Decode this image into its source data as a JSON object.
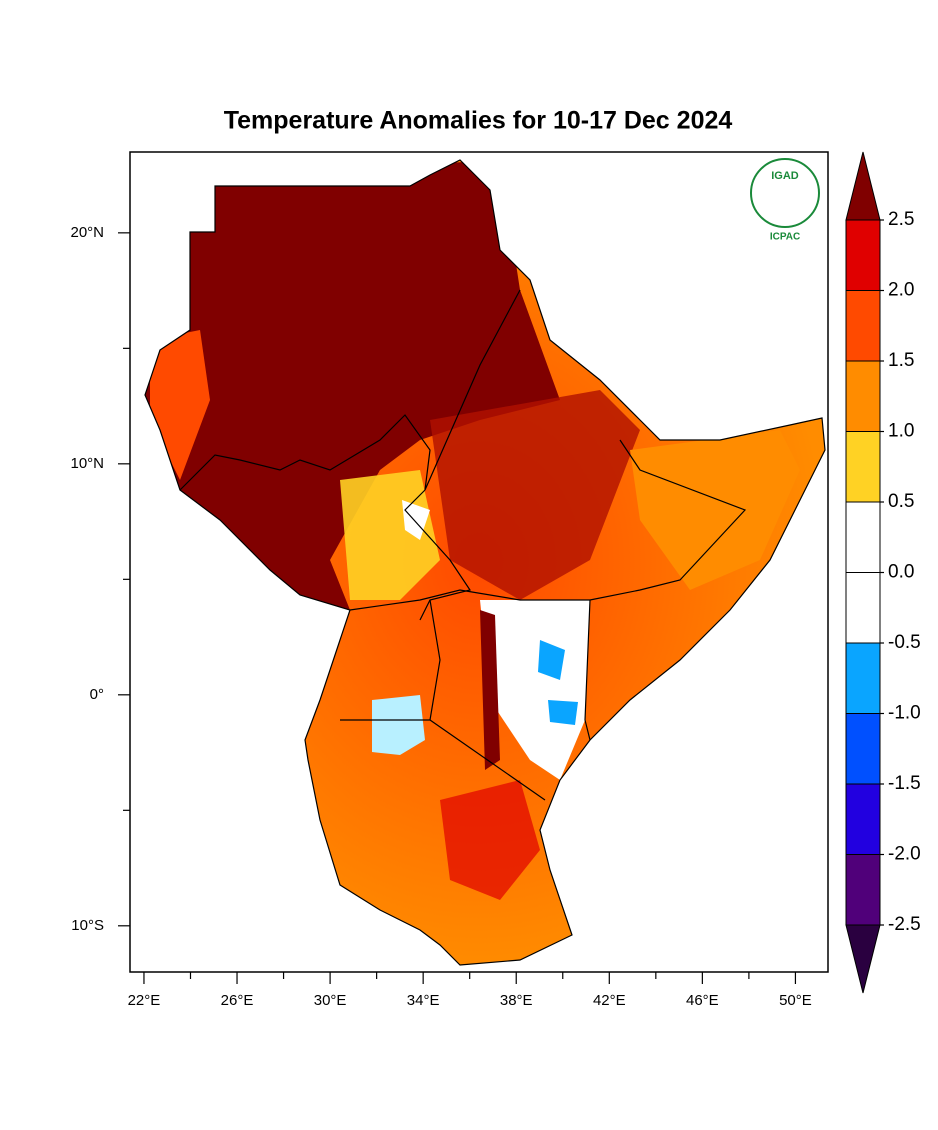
{
  "map": {
    "title": "Temperature Anomalies for 10-17 Dec 2024",
    "xlim": [
      21.4,
      51.4
    ],
    "ylim": [
      -12,
      23.5
    ],
    "xticks": [
      {
        "value": 22,
        "label": "22°E"
      },
      {
        "value": 26,
        "label": "26°E"
      },
      {
        "value": 30,
        "label": "30°E"
      },
      {
        "value": 34,
        "label": "34°E"
      },
      {
        "value": 38,
        "label": "38°E"
      },
      {
        "value": 42,
        "label": "42°E"
      },
      {
        "value": 46,
        "label": "46°E"
      },
      {
        "value": 50,
        "label": "50°E"
      }
    ],
    "xticks_minor": [
      24,
      28,
      32,
      36,
      40,
      44,
      48
    ],
    "yticks": [
      {
        "value": 20,
        "label": "20°N"
      },
      {
        "value": 10,
        "label": "10°N"
      },
      {
        "value": 0,
        "label": "0°"
      },
      {
        "value": -10,
        "label": "10°S"
      }
    ],
    "yticks_minor": [
      15,
      5,
      -5
    ],
    "colorbar": {
      "levels": [
        2.5,
        {
          "value": 2,
          "label": "2.0"
        },
        1.5,
        {
          "value": 1,
          "label": "1.0"
        },
        0.5,
        {
          "value": 0,
          "label": "0.0"
        },
        -0.5,
        {
          "value": -1,
          "label": "-1.0"
        },
        -1.5,
        {
          "value": -2,
          "label": "-2.0"
        },
        -2.5
      ],
      "colors": [
        "#800000",
        "#e00000",
        "#ff4a00",
        "#ff8c00",
        "#ffd224",
        "#ffffff",
        "#ffffff",
        "#0aa5ff",
        "#0050ff",
        "#2200e0",
        "#50007a",
        "#2a0040"
      ]
    },
    "logo": {
      "name": "IGAD",
      "org": "ICPAC"
    }
  }
}
